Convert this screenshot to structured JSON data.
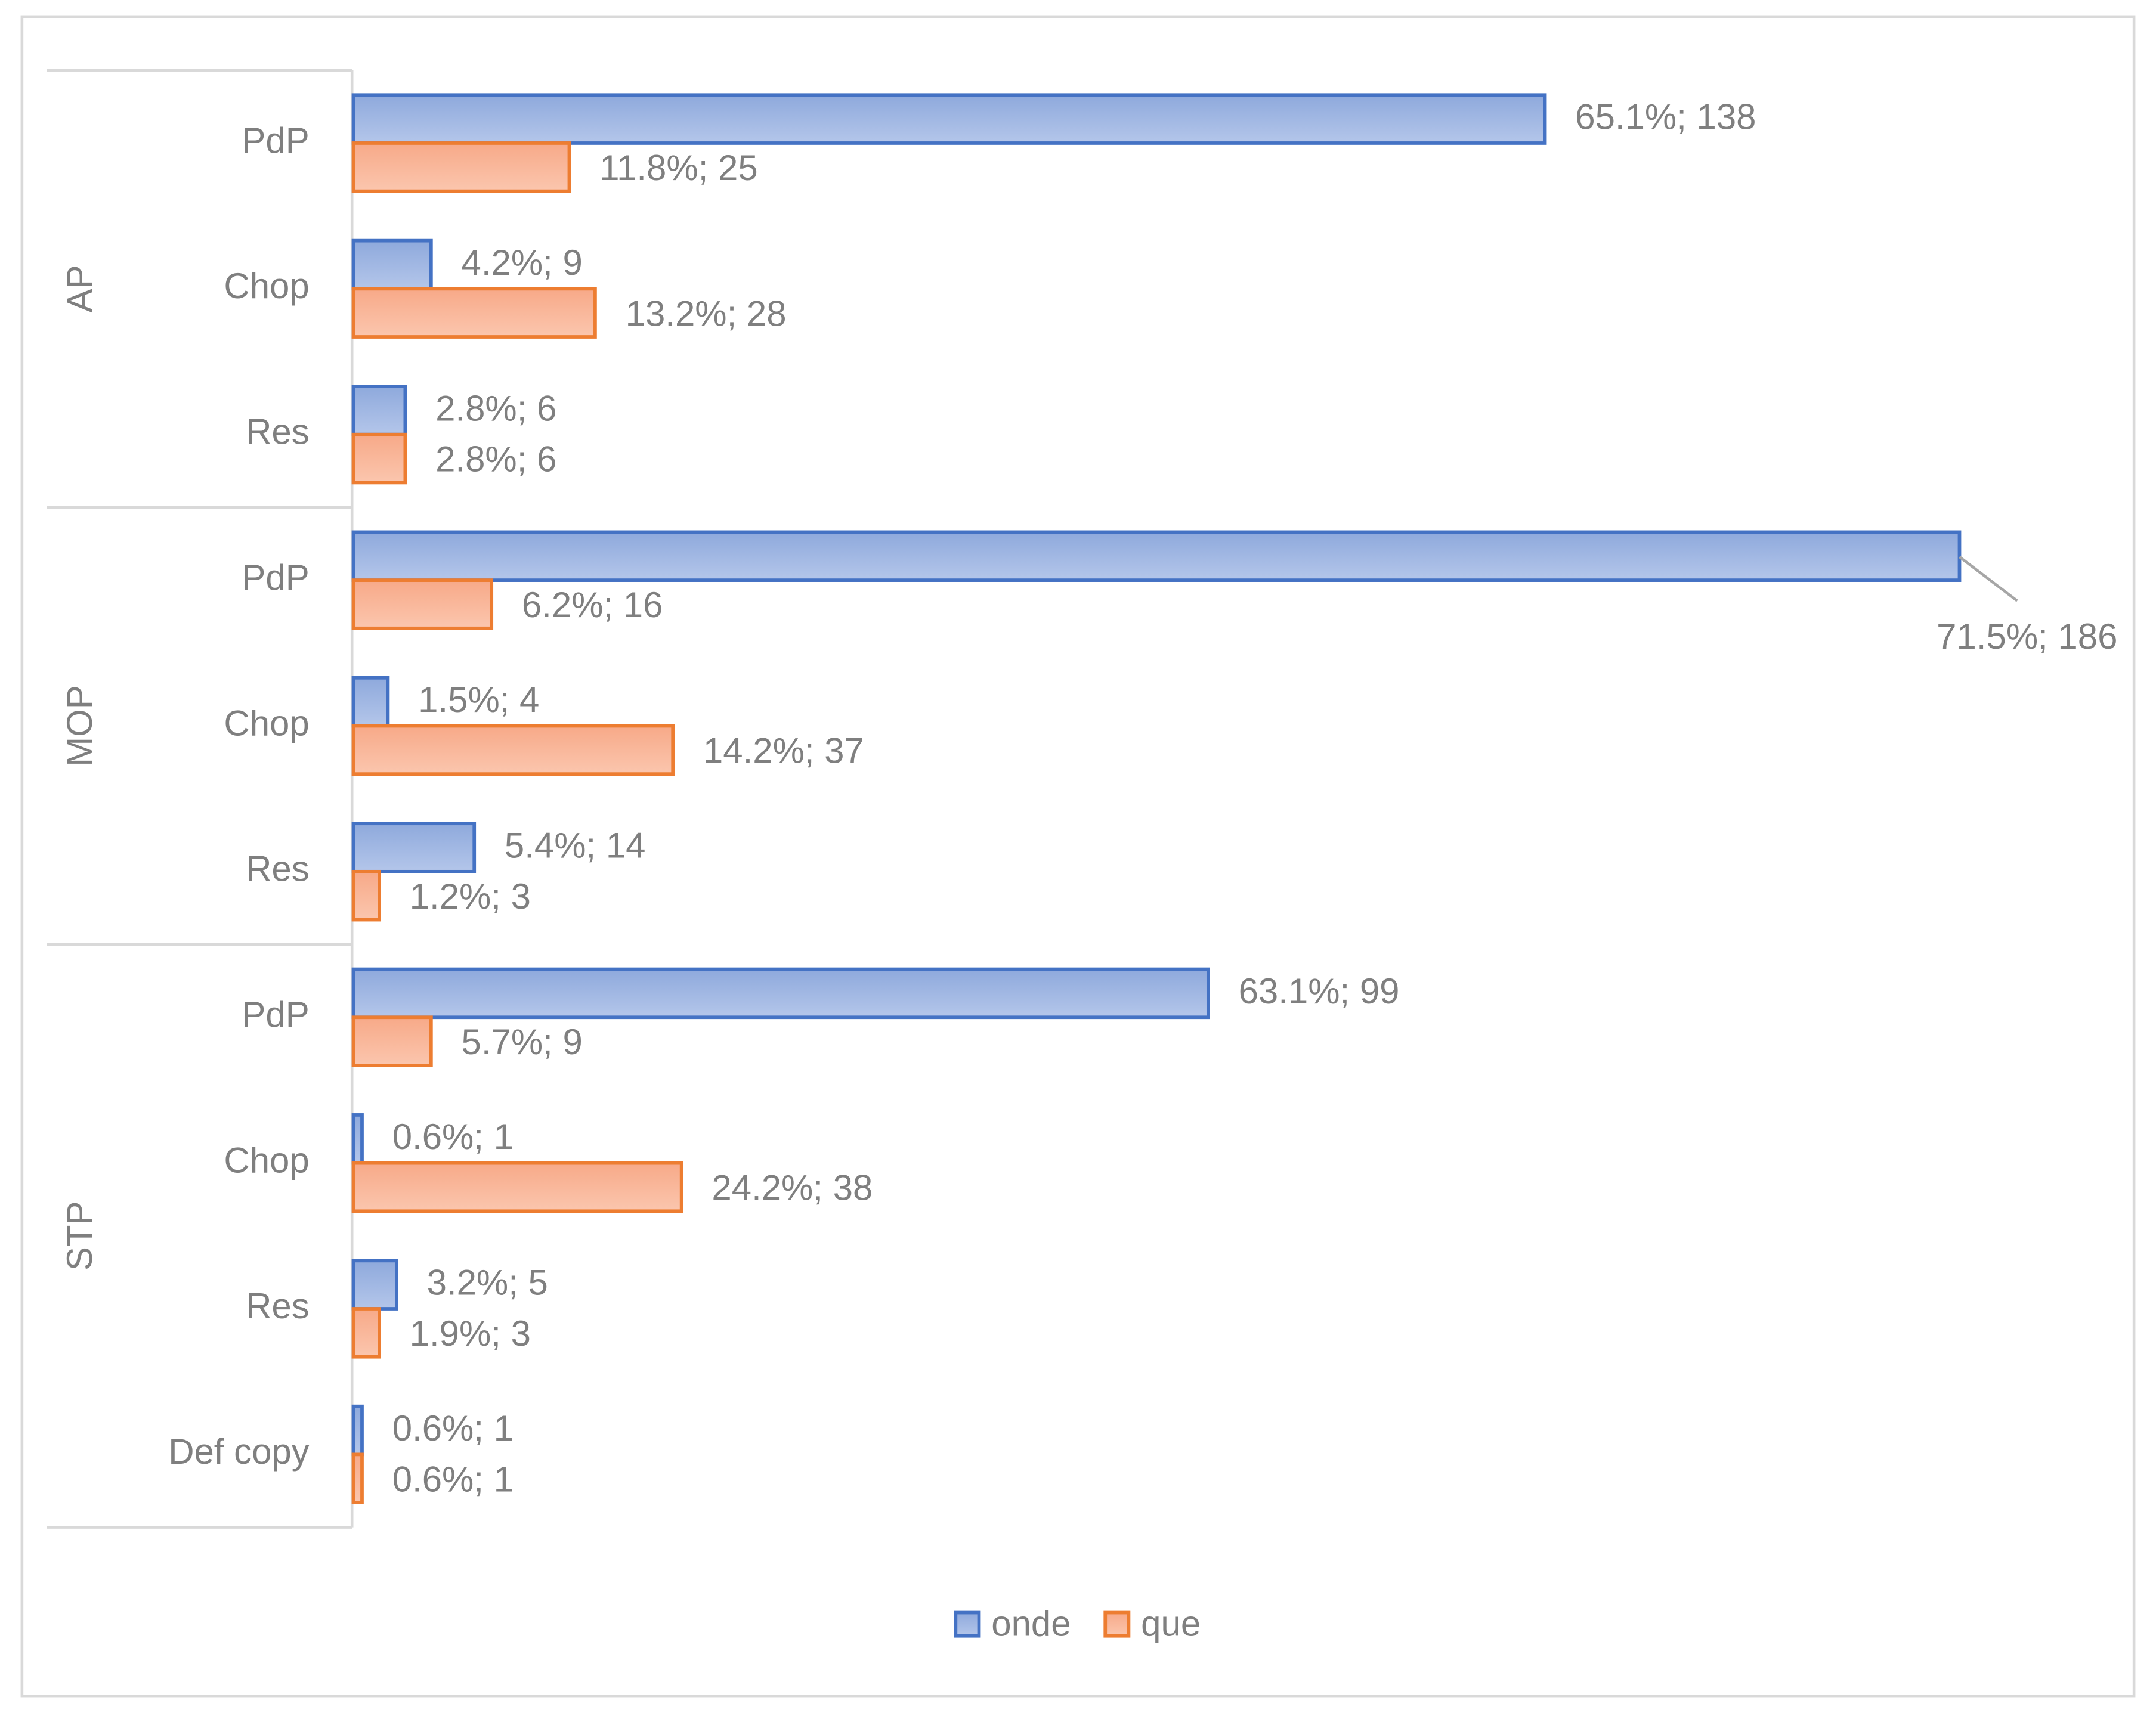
{
  "chart_data": {
    "type": "bar",
    "orientation": "horizontal",
    "groups": [
      {
        "name": "AP",
        "categories": [
          "PdP",
          "Chop",
          "Res"
        ]
      },
      {
        "name": "MOP",
        "categories": [
          "PdP",
          "Chop",
          "Res"
        ]
      },
      {
        "name": "STP",
        "categories": [
          "PdP",
          "Chop",
          "Res",
          "Def copy"
        ]
      }
    ],
    "series": [
      {
        "name": "onde",
        "color": "#4472c4",
        "values": [
          138,
          9,
          6,
          186,
          4,
          14,
          99,
          1,
          5,
          1
        ],
        "value_labels": [
          "65.1%; 138",
          "4.2%; 9",
          "2.8%; 6",
          "71.5%; 186",
          "1.5%; 4",
          "5.4%; 14",
          "63.1%; 99",
          "0.6%; 1",
          "3.2%; 5",
          "0.6%; 1"
        ]
      },
      {
        "name": "que",
        "color": "#ed7d31",
        "values": [
          25,
          28,
          6,
          16,
          37,
          3,
          9,
          38,
          3,
          1
        ],
        "value_labels": [
          "11.8%; 25",
          "13.2%; 28",
          "2.8%; 6",
          "6.2%; 16",
          "14.2%; 37",
          "1.2%; 3",
          "5.7%; 9",
          "24.2%; 38",
          "1.9%; 3",
          "0.6%; 1"
        ]
      }
    ],
    "xlim": [
      0,
      200
    ],
    "legend": "bottom"
  }
}
